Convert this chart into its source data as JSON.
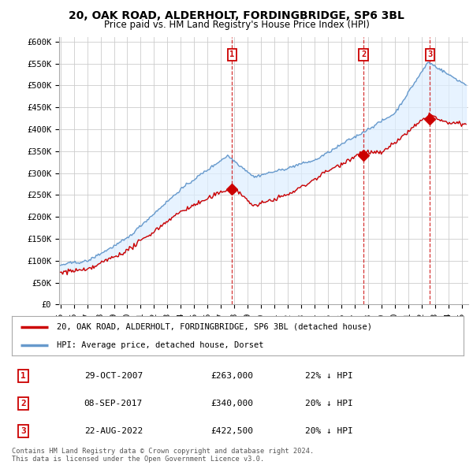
{
  "title": "20, OAK ROAD, ALDERHOLT, FORDINGBRIDGE, SP6 3BL",
  "subtitle": "Price paid vs. HM Land Registry's House Price Index (HPI)",
  "ylim": [
    0,
    600000
  ],
  "hpi_color": "#6699cc",
  "hpi_fill_color": "#ddeeff",
  "price_color": "#cc0000",
  "legend_label_price": "20, OAK ROAD, ALDERHOLT, FORDINGBRIDGE, SP6 3BL (detached house)",
  "legend_label_hpi": "HPI: Average price, detached house, Dorset",
  "transactions": [
    {
      "num": 1,
      "date": 2007.83,
      "price": 263000,
      "label": "29-OCT-2007",
      "pct": "22%",
      "dir": "↓"
    },
    {
      "num": 2,
      "date": 2017.67,
      "price": 340000,
      "label": "08-SEP-2017",
      "pct": "20%",
      "dir": "↓"
    },
    {
      "num": 3,
      "date": 2022.63,
      "price": 422500,
      "label": "22-AUG-2022",
      "pct": "20%",
      "dir": "↓"
    }
  ],
  "copyright_text": "Contains HM Land Registry data © Crown copyright and database right 2024.\nThis data is licensed under the Open Government Licence v3.0.",
  "background_color": "#ffffff",
  "grid_color": "#cccccc"
}
